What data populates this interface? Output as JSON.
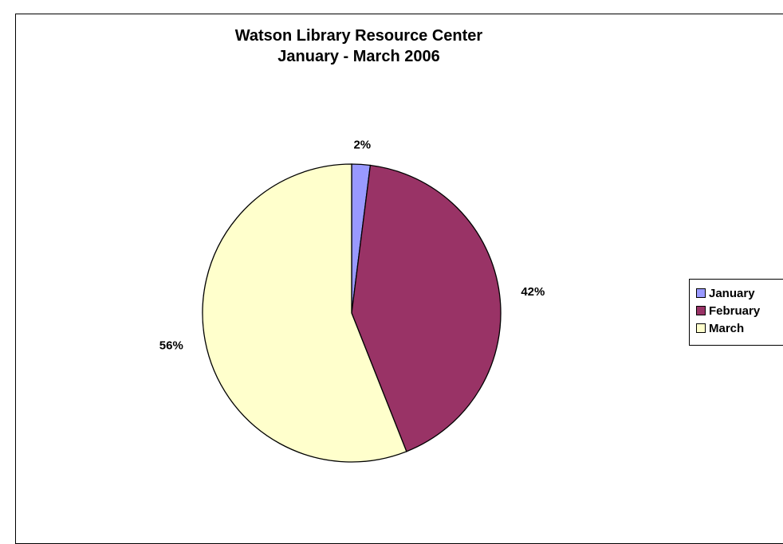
{
  "chart_data": {
    "type": "pie",
    "title": [
      "Watson Library Resource Center",
      "January - March 2006"
    ],
    "categories": [
      "January",
      "February",
      "March"
    ],
    "values": [
      2,
      42,
      56
    ],
    "labels": [
      "2%",
      "42%",
      "56%"
    ],
    "colors": [
      "#9999ff",
      "#993366",
      "#ffffcc"
    ],
    "legend": "right"
  }
}
